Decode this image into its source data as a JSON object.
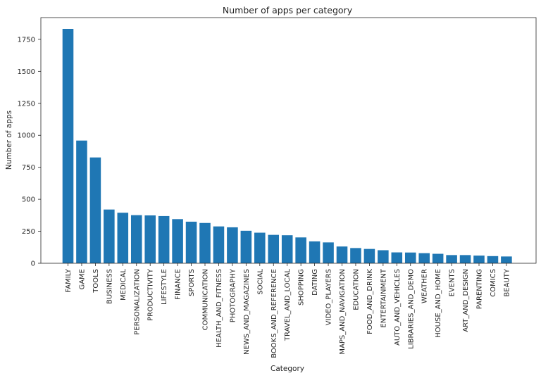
{
  "chart_data": {
    "type": "bar",
    "title": "Number of apps per category",
    "xlabel": "Category",
    "ylabel": "Number of apps",
    "ylim": [
      0,
      1920
    ],
    "yticks": [
      0,
      250,
      500,
      750,
      1000,
      1250,
      1500,
      1750
    ],
    "grid": false,
    "bar_color": "#1f77b4",
    "categories": [
      "FAMILY",
      "GAME",
      "TOOLS",
      "BUSINESS",
      "MEDICAL",
      "PERSONALIZATION",
      "PRODUCTIVITY",
      "LIFESTYLE",
      "FINANCE",
      "SPORTS",
      "COMMUNICATION",
      "HEALTH_AND_FITNESS",
      "PHOTOGRAPHY",
      "NEWS_AND_MAGAZINES",
      "SOCIAL",
      "BOOKS_AND_REFERENCE",
      "TRAVEL_AND_LOCAL",
      "SHOPPING",
      "DATING",
      "VIDEO_PLAYERS",
      "MAPS_AND_NAVIGATION",
      "EDUCATION",
      "FOOD_AND_DRINK",
      "ENTERTAINMENT",
      "AUTO_AND_VEHICLES",
      "LIBRARIES_AND_DEMO",
      "WEATHER",
      "HOUSE_AND_HOME",
      "EVENTS",
      "ART_AND_DESIGN",
      "PARENTING",
      "COMICS",
      "BEAUTY"
    ],
    "values": [
      1832,
      959,
      827,
      420,
      395,
      376,
      374,
      369,
      345,
      325,
      315,
      288,
      281,
      254,
      239,
      222,
      219,
      202,
      171,
      163,
      131,
      119,
      112,
      102,
      85,
      84,
      79,
      74,
      64,
      64,
      60,
      56,
      53
    ]
  }
}
